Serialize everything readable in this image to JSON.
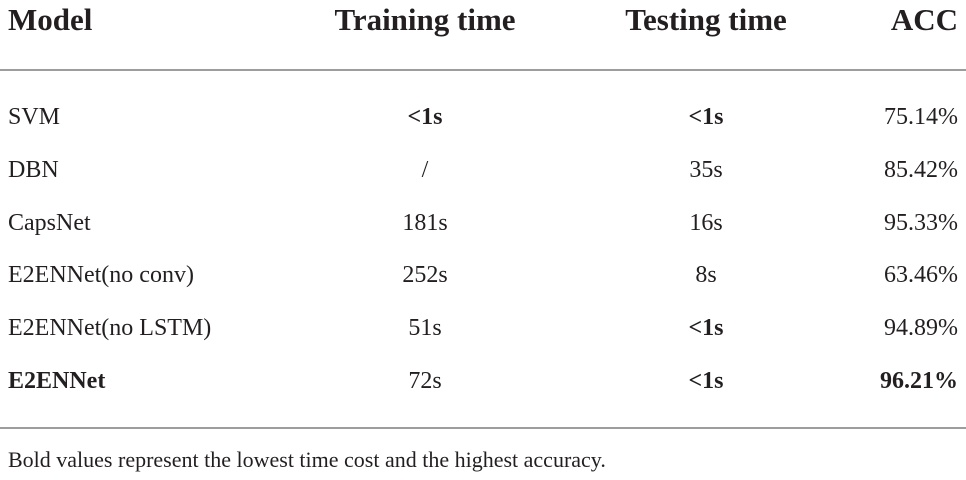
{
  "table": {
    "header": [
      "Model",
      "Training time",
      "Testing time",
      "ACC"
    ],
    "rows": [
      [
        "SVM",
        "<1s",
        "<1s",
        "75.14%"
      ],
      [
        "DBN",
        "/",
        "35s",
        "85.42%"
      ],
      [
        "CapsNet",
        "181s",
        "16s",
        "95.33%"
      ],
      [
        "E2ENNet(no conv)",
        "252s",
        "8s",
        "63.46%"
      ],
      [
        "E2ENNet(no LSTM)",
        "51s",
        "<1s",
        "94.89%"
      ],
      [
        "E2ENNet",
        "72s",
        "<1s",
        "96.21%"
      ]
    ],
    "bold_cells": [
      [
        0,
        1
      ],
      [
        0,
        2
      ],
      [
        4,
        2
      ],
      [
        5,
        0
      ],
      [
        5,
        2
      ],
      [
        5,
        3
      ]
    ],
    "footnote": "Bold values represent the lowest time cost and the highest accuracy."
  }
}
